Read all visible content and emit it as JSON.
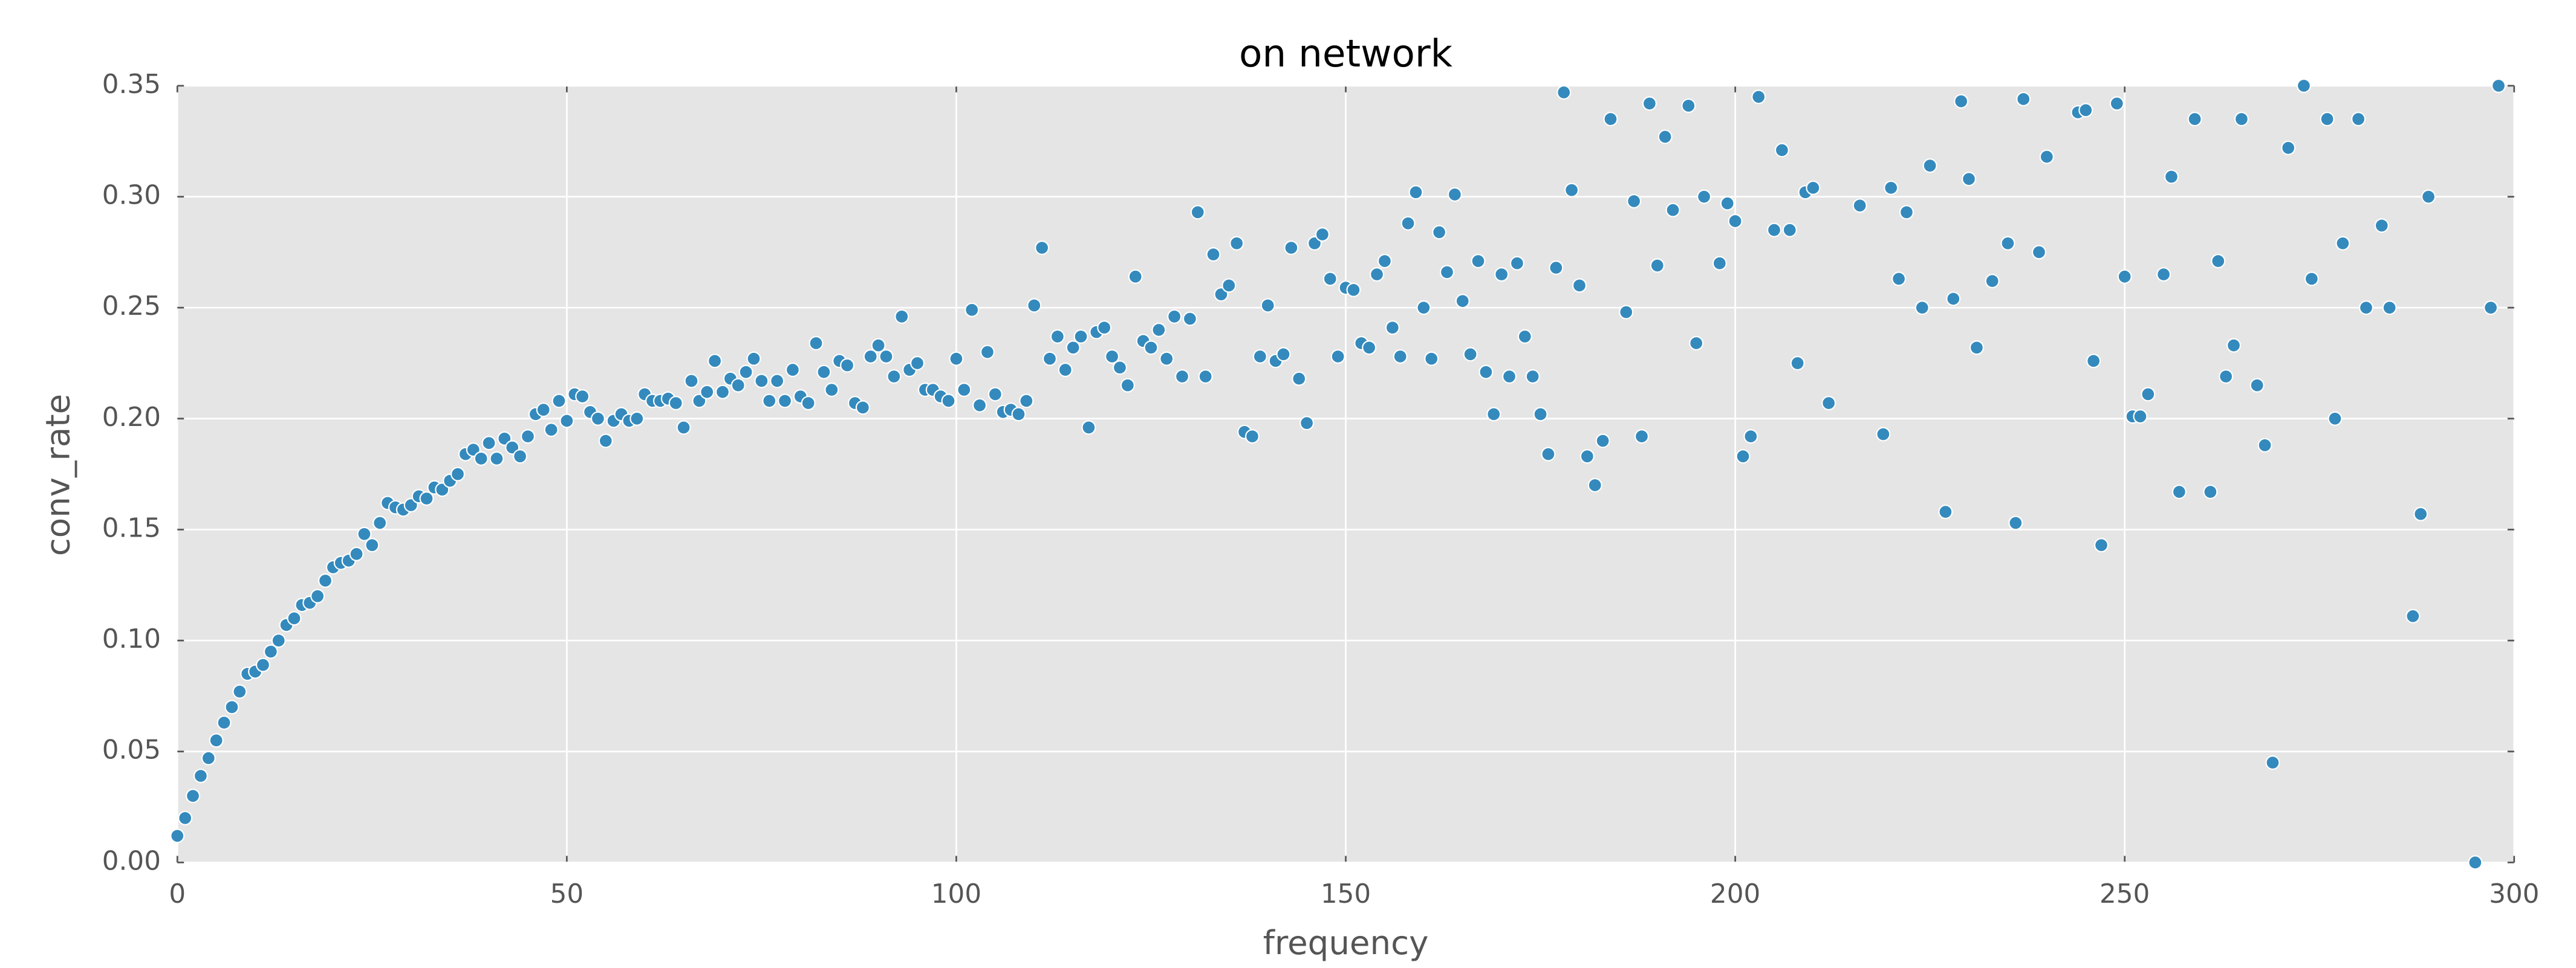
{
  "chart_data": {
    "type": "scatter",
    "title": "on network",
    "xlabel": "frequency",
    "ylabel": "conv_rate",
    "xlim": [
      0,
      300
    ],
    "ylim": [
      0,
      0.35
    ],
    "xticks": [
      0,
      50,
      100,
      150,
      200,
      250,
      300
    ],
    "yticks": [
      {
        "value": 0,
        "label": "0.00"
      },
      {
        "value": 0.05,
        "label": "0.05"
      },
      {
        "value": 0.1,
        "label": "0.10"
      },
      {
        "value": 0.15,
        "label": "0.15"
      },
      {
        "value": 0.2,
        "label": "0.20"
      },
      {
        "value": 0.25,
        "label": "0.25"
      },
      {
        "value": 0.3,
        "label": "0.30"
      },
      {
        "value": 0.35,
        "label": "0.35"
      }
    ],
    "grid": true,
    "color": "#348abd",
    "x": [
      0,
      1,
      2,
      3,
      4,
      5,
      6,
      7,
      8,
      9,
      10,
      11,
      12,
      13,
      14,
      15,
      16,
      17,
      18,
      19,
      20,
      21,
      22,
      23,
      24,
      25,
      26,
      27,
      28,
      29,
      30,
      31,
      32,
      33,
      34,
      35,
      36,
      37,
      38,
      39,
      40,
      41,
      42,
      43,
      44,
      45,
      46,
      47,
      48,
      49,
      50,
      51,
      52,
      53,
      54,
      55,
      56,
      57,
      58,
      59,
      60,
      61,
      62,
      63,
      64,
      65,
      66,
      67,
      68,
      69,
      70,
      71,
      72,
      73,
      74,
      75,
      76,
      77,
      78,
      79,
      80,
      81,
      82,
      83,
      84,
      85,
      86,
      87,
      88,
      89,
      90,
      91,
      92,
      93,
      94,
      95,
      96,
      97,
      98,
      99,
      100,
      101,
      102,
      103,
      104,
      105,
      106,
      107,
      108,
      109,
      110,
      111,
      112,
      113,
      114,
      115,
      116,
      117,
      118,
      119,
      120,
      121,
      122,
      123,
      124,
      125,
      126,
      127,
      128,
      129,
      130,
      131,
      132,
      133,
      134,
      135,
      136,
      137,
      138,
      139,
      140,
      141,
      142,
      143,
      144,
      145,
      146,
      147,
      148,
      149,
      150,
      151,
      152,
      153,
      154,
      155,
      156,
      157,
      158,
      159,
      160,
      161,
      162,
      163,
      164,
      165,
      166,
      167,
      168,
      169,
      170,
      171,
      172,
      173,
      174,
      175,
      176,
      177,
      178,
      179,
      180,
      181,
      182,
      183,
      184,
      186,
      187,
      188,
      189,
      190,
      191,
      192,
      194,
      195,
      196,
      198,
      199,
      200,
      201,
      202,
      203,
      205,
      206,
      207,
      208,
      209,
      210,
      212,
      216,
      219,
      220,
      221,
      222,
      224,
      225,
      227,
      228,
      229,
      230,
      231,
      233,
      235,
      236,
      237,
      239,
      240,
      244,
      245,
      246,
      247,
      249,
      250,
      251,
      252,
      253,
      255,
      256,
      257,
      259,
      261,
      262,
      263,
      264,
      265,
      267,
      268,
      269,
      271,
      273,
      274,
      276,
      277,
      278,
      280,
      281,
      283,
      284,
      287,
      288,
      289,
      295,
      297,
      298
    ],
    "values": [
      0.012,
      0.02,
      0.03,
      0.039,
      0.047,
      0.055,
      0.063,
      0.07,
      0.077,
      0.085,
      0.086,
      0.089,
      0.095,
      0.1,
      0.107,
      0.11,
      0.116,
      0.117,
      0.12,
      0.127,
      0.133,
      0.135,
      0.136,
      0.139,
      0.148,
      0.143,
      0.153,
      0.162,
      0.16,
      0.159,
      0.161,
      0.165,
      0.164,
      0.169,
      0.168,
      0.172,
      0.175,
      0.184,
      0.186,
      0.182,
      0.189,
      0.182,
      0.191,
      0.187,
      0.183,
      0.192,
      0.202,
      0.204,
      0.195,
      0.208,
      0.199,
      0.211,
      0.21,
      0.203,
      0.2,
      0.19,
      0.199,
      0.202,
      0.199,
      0.2,
      0.211,
      0.208,
      0.208,
      0.209,
      0.207,
      0.196,
      0.217,
      0.208,
      0.212,
      0.226,
      0.212,
      0.218,
      0.215,
      0.221,
      0.227,
      0.217,
      0.208,
      0.217,
      0.208,
      0.222,
      0.21,
      0.207,
      0.234,
      0.221,
      0.213,
      0.226,
      0.224,
      0.207,
      0.205,
      0.228,
      0.233,
      0.228,
      0.219,
      0.246,
      0.222,
      0.225,
      0.213,
      0.213,
      0.21,
      0.208,
      0.227,
      0.213,
      0.249,
      0.206,
      0.23,
      0.211,
      0.203,
      0.204,
      0.202,
      0.208,
      0.251,
      0.277,
      0.227,
      0.237,
      0.222,
      0.232,
      0.237,
      0.196,
      0.239,
      0.241,
      0.228,
      0.223,
      0.215,
      0.264,
      0.235,
      0.232,
      0.24,
      0.227,
      0.246,
      0.219,
      0.245,
      0.293,
      0.219,
      0.274,
      0.256,
      0.26,
      0.279,
      0.194,
      0.192,
      0.228,
      0.251,
      0.226,
      0.229,
      0.277,
      0.218,
      0.198,
      0.279,
      0.283,
      0.263,
      0.228,
      0.259,
      0.258,
      0.234,
      0.232,
      0.265,
      0.271,
      0.241,
      0.228,
      0.288,
      0.302,
      0.25,
      0.227,
      0.284,
      0.266,
      0.301,
      0.253,
      0.229,
      0.271,
      0.221,
      0.202,
      0.265,
      0.219,
      0.27,
      0.237,
      0.219,
      0.202,
      0.184,
      0.268,
      0.347,
      0.303,
      0.26,
      0.183,
      0.17,
      0.19,
      0.335,
      0.248,
      0.298,
      0.192,
      0.342,
      0.269,
      0.327,
      0.294,
      0.341,
      0.234,
      0.3,
      0.27,
      0.297,
      0.289,
      0.183,
      0.192,
      0.345,
      0.285,
      0.321,
      0.285,
      0.225,
      0.302,
      0.304,
      0.207,
      0.296,
      0.193,
      0.304,
      0.263,
      0.293,
      0.25,
      0.314,
      0.158,
      0.254,
      0.343,
      0.308,
      0.232,
      0.262,
      0.279,
      0.153,
      0.344,
      0.275,
      0.318,
      0.338,
      0.339,
      0.226,
      0.143,
      0.342,
      0.264,
      0.201,
      0.201,
      0.211,
      0.265,
      0.309,
      0.167,
      0.335,
      0.167,
      0.271,
      0.219,
      0.233,
      0.335,
      0.215,
      0.188,
      0.045,
      0.322,
      0.35,
      0.263,
      0.335,
      0.2,
      0.279,
      0.335,
      0.25,
      0.287,
      0.25,
      0.111,
      0.157,
      0.3,
      0.0,
      0.25,
      0.35
    ]
  }
}
